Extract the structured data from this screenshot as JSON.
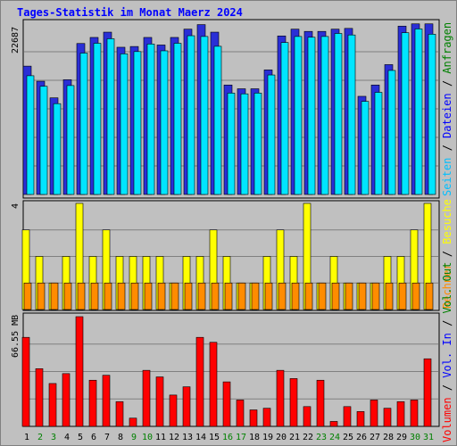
{
  "title": "Tages-Statistik im Monat Maerz 2024",
  "colors": {
    "anfragen": "#2a2fd6",
    "dateien": "#00e5ff",
    "seiten": "#00d2ff",
    "besuche": "#ffff00",
    "rechner": "#ff8c00",
    "volumen": "#ff0000",
    "weekend_day_label": "#008000",
    "weekday_label": "#000000",
    "panel_bg": "#c0c0c0"
  },
  "right_legend": {
    "top": [
      {
        "text": "Anfragen",
        "color": "#008000"
      },
      {
        "text": "Dateien",
        "color": "#0000ff"
      },
      {
        "text": "Seiten",
        "color": "#00bfff"
      }
    ],
    "middle": [
      {
        "text": "Besuche",
        "color": "#ffff00"
      },
      {
        "text": "Rechner",
        "color": "#ff8c00"
      }
    ],
    "bottom": [
      {
        "text": "Vol. Out",
        "color": "#008000"
      },
      {
        "text": "Vol. In",
        "color": "#0000ff"
      },
      {
        "text": "Volumen",
        "color": "#ff0000"
      }
    ]
  },
  "chart_data": [
    {
      "type": "bar",
      "name": "requests-files-pages",
      "ymax_label": "22687",
      "ymax": 22687,
      "days": [
        1,
        2,
        3,
        4,
        5,
        6,
        7,
        8,
        9,
        10,
        11,
        12,
        13,
        14,
        15,
        16,
        17,
        18,
        19,
        20,
        21,
        22,
        23,
        24,
        25,
        26,
        27,
        28,
        29,
        30,
        31
      ],
      "series": [
        {
          "name": "Anfragen",
          "values": [
            17000,
            15000,
            12800,
            15200,
            20000,
            20800,
            21500,
            19500,
            19600,
            20800,
            19800,
            20800,
            21900,
            22500,
            21500,
            14500,
            14000,
            14000,
            16500,
            21000,
            21900,
            21600,
            21600,
            21900,
            22000,
            13000,
            14500,
            17200,
            22300,
            22600,
            22600
          ]
        },
        {
          "name": "Dateien",
          "values": [
            16200,
            14800,
            12500,
            14900,
            19200,
            20500,
            21100,
            19100,
            19400,
            20400,
            19500,
            20500,
            21500,
            21400,
            20100,
            13900,
            13800,
            13900,
            16300,
            20600,
            21400,
            21300,
            21400,
            21800,
            21600,
            12800,
            14000,
            16900,
            21900,
            22400,
            21700
          ]
        }
      ]
    },
    {
      "type": "bar",
      "name": "visits-hosts",
      "ymax_label": "4",
      "ymax": 4,
      "series": [
        {
          "name": "Besuche",
          "values": [
            3,
            2,
            1,
            2,
            4,
            2,
            3,
            2,
            2,
            2,
            2,
            1,
            2,
            2,
            3,
            2,
            1,
            1,
            2,
            3,
            2,
            4,
            1,
            2,
            1,
            1,
            1,
            2,
            2,
            3,
            4
          ]
        },
        {
          "name": "Rechner",
          "values": [
            1,
            1,
            1,
            1,
            1,
            1,
            1,
            1,
            1,
            1,
            1,
            1,
            1,
            1,
            1,
            1,
            1,
            1,
            1,
            1,
            1,
            1,
            1,
            1,
            1,
            1,
            1,
            1,
            1,
            1,
            1
          ]
        }
      ]
    },
    {
      "type": "bar",
      "name": "volume",
      "ymax_label": "66.55 MB",
      "ymax": 66.55,
      "series": [
        {
          "name": "Volumen",
          "values": [
            54,
            35,
            26,
            32,
            66.55,
            28,
            31,
            15,
            5,
            34,
            30,
            19,
            24,
            54,
            51,
            27,
            16,
            10,
            11,
            34,
            29,
            12,
            28,
            3,
            12,
            9,
            16,
            11,
            15,
            16,
            41
          ]
        }
      ]
    }
  ],
  "x_labels": [
    {
      "text": "1",
      "weekend": false
    },
    {
      "text": "2",
      "weekend": true
    },
    {
      "text": "3",
      "weekend": true
    },
    {
      "text": "4",
      "weekend": false
    },
    {
      "text": "5",
      "weekend": false
    },
    {
      "text": "6",
      "weekend": false
    },
    {
      "text": "7",
      "weekend": false
    },
    {
      "text": "8",
      "weekend": false
    },
    {
      "text": "9",
      "weekend": true
    },
    {
      "text": "10",
      "weekend": true
    },
    {
      "text": "11",
      "weekend": false
    },
    {
      "text": "12",
      "weekend": false
    },
    {
      "text": "13",
      "weekend": false
    },
    {
      "text": "14",
      "weekend": false
    },
    {
      "text": "15",
      "weekend": false
    },
    {
      "text": "16",
      "weekend": true
    },
    {
      "text": "17",
      "weekend": true
    },
    {
      "text": "18",
      "weekend": false
    },
    {
      "text": "19",
      "weekend": false
    },
    {
      "text": "20",
      "weekend": false
    },
    {
      "text": "21",
      "weekend": false
    },
    {
      "text": "22",
      "weekend": false
    },
    {
      "text": "23",
      "weekend": true
    },
    {
      "text": "24",
      "weekend": true
    },
    {
      "text": "25",
      "weekend": false
    },
    {
      "text": "26",
      "weekend": false
    },
    {
      "text": "27",
      "weekend": false
    },
    {
      "text": "28",
      "weekend": false
    },
    {
      "text": "29",
      "weekend": false
    },
    {
      "text": "30",
      "weekend": true
    },
    {
      "text": "31",
      "weekend": true
    }
  ]
}
